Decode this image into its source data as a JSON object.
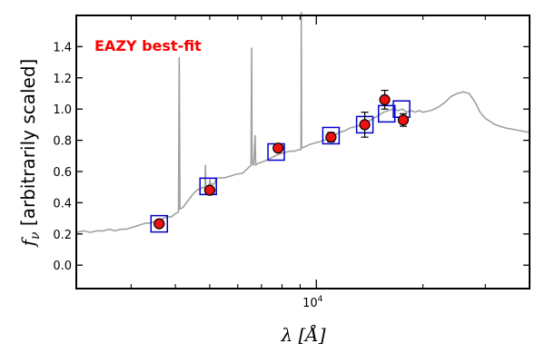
{
  "chart_data": {
    "type": "line",
    "annotation": "EAZY best-fit",
    "annotation_color": "#ff0000",
    "xlabel": "λ [Å]",
    "ylabel": "f_ν [arbitrarily scaled]",
    "ylabel_prefix": "f",
    "ylabel_sub": "ν",
    "ylabel_rest": " [arbitrarily scaled]",
    "xlabel_prefix": "λ [",
    "xlabel_unit": "Å",
    "xlabel_suffix": "]",
    "x_scale": "log",
    "xlim": [
      2100,
      40000
    ],
    "ylim": [
      -0.15,
      1.6
    ],
    "y_ticks": [
      0.0,
      0.2,
      0.4,
      0.6,
      0.8,
      1.0,
      1.2,
      1.4
    ],
    "y_tick_labels": [
      "0.0",
      "0.2",
      "0.4",
      "0.6",
      "0.8",
      "1.0",
      "1.2",
      "1.4"
    ],
    "x_tick_label": {
      "value": 10000,
      "base": "10",
      "exponent": "4"
    },
    "grid": false,
    "legend": "none",
    "colors": {
      "template": "#a0a0a0",
      "model_box": "#0000cc",
      "observed": "#ee1111",
      "error_bar": "#000000"
    },
    "series": [
      {
        "role": "template",
        "style": "line",
        "points": [
          [
            2100,
            0.21
          ],
          [
            2200,
            0.22
          ],
          [
            2300,
            0.21
          ],
          [
            2400,
            0.22
          ],
          [
            2500,
            0.22
          ],
          [
            2600,
            0.23
          ],
          [
            2700,
            0.22
          ],
          [
            2800,
            0.23
          ],
          [
            2900,
            0.23
          ],
          [
            3000,
            0.24
          ],
          [
            3100,
            0.25
          ],
          [
            3200,
            0.26
          ],
          [
            3300,
            0.27
          ],
          [
            3400,
            0.27
          ],
          [
            3500,
            0.28
          ],
          [
            3600,
            0.29
          ],
          [
            3700,
            0.3
          ],
          [
            3800,
            0.31
          ],
          [
            3900,
            0.31
          ],
          [
            4000,
            0.33
          ],
          [
            4080,
            0.34
          ],
          [
            4100,
            1.33
          ],
          [
            4120,
            0.36
          ],
          [
            4200,
            0.37
          ],
          [
            4300,
            0.4
          ],
          [
            4400,
            0.43
          ],
          [
            4500,
            0.46
          ],
          [
            4600,
            0.48
          ],
          [
            4700,
            0.49
          ],
          [
            4800,
            0.5
          ],
          [
            4850,
            0.49
          ],
          [
            4862,
            0.64
          ],
          [
            4875,
            0.5
          ],
          [
            4950,
            0.51
          ],
          [
            4990,
            0.52
          ],
          [
            5008,
            0.55
          ],
          [
            5030,
            0.52
          ],
          [
            5150,
            0.52
          ],
          [
            5200,
            0.55
          ],
          [
            5300,
            0.56
          ],
          [
            5500,
            0.56
          ],
          [
            5700,
            0.57
          ],
          [
            5900,
            0.58
          ],
          [
            6200,
            0.59
          ],
          [
            6400,
            0.62
          ],
          [
            6540,
            0.64
          ],
          [
            6563,
            1.39
          ],
          [
            6585,
            0.66
          ],
          [
            6650,
            0.64
          ],
          [
            6716,
            0.83
          ],
          [
            6740,
            0.64
          ],
          [
            6800,
            0.65
          ],
          [
            7000,
            0.66
          ],
          [
            7200,
            0.67
          ],
          [
            7500,
            0.69
          ],
          [
            7800,
            0.71
          ],
          [
            8100,
            0.72
          ],
          [
            8400,
            0.73
          ],
          [
            8700,
            0.73
          ],
          [
            8900,
            0.74
          ],
          [
            9050,
            0.74
          ],
          [
            9069,
            1.62
          ],
          [
            9090,
            0.75
          ],
          [
            9300,
            0.76
          ],
          [
            9500,
            0.77
          ],
          [
            9800,
            0.78
          ],
          [
            10200,
            0.79
          ],
          [
            10500,
            0.8
          ],
          [
            10800,
            0.81
          ],
          [
            11200,
            0.83
          ],
          [
            11600,
            0.85
          ],
          [
            12000,
            0.86
          ],
          [
            12500,
            0.88
          ],
          [
            13000,
            0.89
          ],
          [
            13500,
            0.9
          ],
          [
            14000,
            0.92
          ],
          [
            14500,
            0.94
          ],
          [
            15000,
            0.96
          ],
          [
            15500,
            0.98
          ],
          [
            16000,
            0.99
          ],
          [
            16500,
            1.0
          ],
          [
            17000,
            0.99
          ],
          [
            17500,
            1.0
          ],
          [
            18000,
            0.98
          ],
          [
            18500,
            0.99
          ],
          [
            19000,
            0.98
          ],
          [
            19500,
            0.99
          ],
          [
            20000,
            0.98
          ],
          [
            21000,
            0.99
          ],
          [
            22000,
            1.01
          ],
          [
            23000,
            1.04
          ],
          [
            24000,
            1.08
          ],
          [
            25000,
            1.1
          ],
          [
            26000,
            1.11
          ],
          [
            27000,
            1.1
          ],
          [
            28000,
            1.05
          ],
          [
            29000,
            0.98
          ],
          [
            30000,
            0.94
          ],
          [
            32000,
            0.9
          ],
          [
            34000,
            0.88
          ],
          [
            36000,
            0.87
          ],
          [
            38000,
            0.86
          ],
          [
            40000,
            0.85
          ]
        ]
      },
      {
        "role": "model_photometry",
        "style": "open-square",
        "points": [
          [
            3600,
            0.265
          ],
          [
            4950,
            0.505
          ],
          [
            7700,
            0.725
          ],
          [
            11000,
            0.83
          ],
          [
            13700,
            0.9
          ],
          [
            15800,
            0.97
          ],
          [
            17400,
            1.0
          ]
        ]
      },
      {
        "role": "observed_photometry",
        "style": "filled-circle-errorbar",
        "points": [
          {
            "x": 3600,
            "y": 0.265,
            "err": 0.01
          },
          {
            "x": 5000,
            "y": 0.48,
            "err": 0.015
          },
          {
            "x": 7800,
            "y": 0.75,
            "err": 0.02
          },
          {
            "x": 11000,
            "y": 0.82,
            "err": 0.03
          },
          {
            "x": 13700,
            "y": 0.9,
            "err": 0.08
          },
          {
            "x": 15600,
            "y": 1.06,
            "err": 0.06
          },
          {
            "x": 17600,
            "y": 0.93,
            "err": 0.04
          }
        ]
      }
    ]
  }
}
